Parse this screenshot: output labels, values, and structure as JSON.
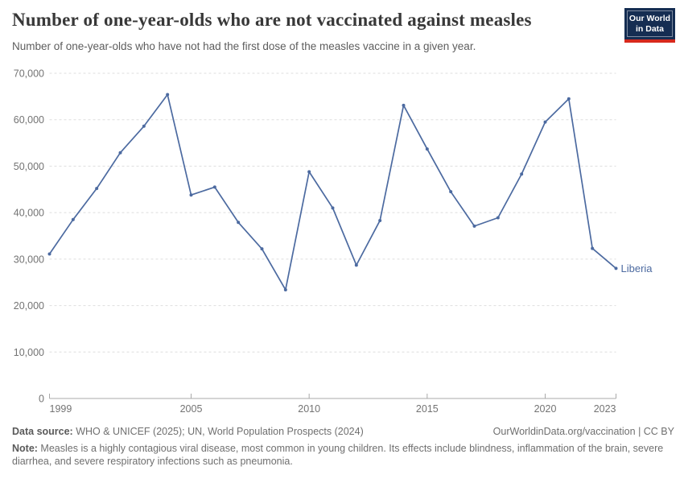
{
  "header": {
    "title": "Number of one-year-olds who are not vaccinated against measles",
    "subtitle": "Number of one-year-olds who have not had the first dose of the measles vaccine in a given year."
  },
  "logo": {
    "line1": "Our World",
    "line2": "in Data"
  },
  "chart_data": {
    "type": "line",
    "title": "Number of one-year-olds who are not vaccinated against measles",
    "xlabel": "",
    "ylabel": "",
    "x": [
      1999,
      2000,
      2001,
      2002,
      2003,
      2004,
      2005,
      2006,
      2007,
      2008,
      2009,
      2010,
      2011,
      2012,
      2013,
      2014,
      2015,
      2016,
      2017,
      2018,
      2019,
      2020,
      2021,
      2022,
      2023
    ],
    "series": [
      {
        "name": "Liberia",
        "values": [
          31100,
          38500,
          45200,
          52900,
          58600,
          65400,
          43800,
          45500,
          37900,
          32200,
          23400,
          48800,
          41000,
          28700,
          38300,
          63100,
          53700,
          44500,
          37100,
          38900,
          48300,
          59500,
          64500,
          32300,
          28000
        ]
      }
    ],
    "ylim": [
      0,
      70000
    ],
    "yticks": [
      0,
      10000,
      20000,
      30000,
      40000,
      50000,
      60000,
      70000
    ],
    "xticks": [
      1999,
      2005,
      2010,
      2015,
      2020,
      2023
    ],
    "grid": "horizontal-dashed",
    "legend": "end-of-line-label",
    "end_label": "Liberia"
  },
  "footer": {
    "source_label": "Data source:",
    "source_text": " WHO & UNICEF (2025); UN, World Population Prospects (2024)",
    "attribution": "OurWorldinData.org/vaccination | CC BY",
    "note_label": "Note:",
    "note_text": " Measles is a highly contagious viral disease, most common in young children. Its effects include blindness, inflammation of the brain, severe diarrhea, and severe respiratory infections such as pneumonia."
  },
  "colors": {
    "line": "#4C6AA0",
    "grid": "#DEDEDE",
    "axis": "#A9A9A9",
    "tick_label": "#737373",
    "logo_navy": "#152D52",
    "logo_red": "#D7291D"
  }
}
